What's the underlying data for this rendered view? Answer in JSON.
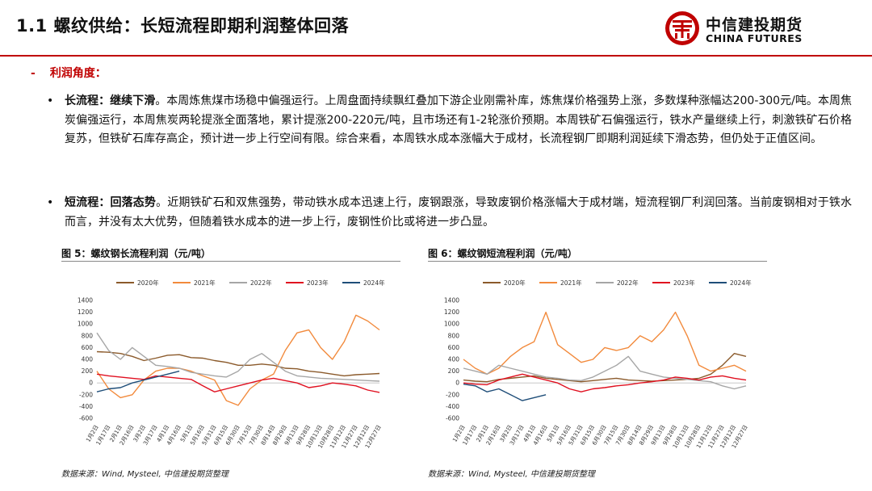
{
  "header": {
    "title": "1.1 螺纹供给：长短流程即期利润整体回落",
    "logo_cn": "中信建投期货",
    "logo_en": "CHINA FUTURES"
  },
  "section": {
    "dash": "-",
    "label": "利润角度："
  },
  "paragraphs": [
    {
      "lead": "长流程：继续下滑",
      "text": "。本周炼焦煤市场稳中偏强运行。上周盘面持续飘红叠加下游企业刚需补库，炼焦煤价格强势上涨，多数煤种涨幅达200-300元/吨。本周焦炭偏强运行，本周焦炭两轮提涨全面落地，累计提涨200-220元/吨，且市场还有1-2轮涨价预期。本周铁矿石偏强运行，铁水产量继续上行，刺激铁矿石价格复苏，但铁矿石库存高企，预计进一步上行空间有限。综合来看，本周铁水成本涨幅大于成材，长流程钢厂即期利润延续下滑态势，但仍处于正值区间。"
    },
    {
      "lead": "短流程：回落态势",
      "text": "。近期铁矿石和双焦强势，带动铁水成本迅速上行，废钢跟涨，导致废钢价格涨幅大于成材端，短流程钢厂利润回落。当前废钢相对于铁水而言，并没有太大优势，但随着铁水成本的进一步上行，废钢性价比或将进一步凸显。"
    }
  ],
  "bullet": "•",
  "figures": [
    {
      "title": "图 5：螺纹钢长流程利润（元/吨）",
      "source": "数据来源：Wind, Mysteel, 中信建投期货整理"
    },
    {
      "title": "图 6：螺纹钢短流程利润（元/吨）",
      "source": "数据来源：Wind, Mysteel, 中信建投期货整理"
    }
  ],
  "colors": {
    "brand_red": "#c00000",
    "s2020": "#8b5a2b",
    "s2021": "#f28a3c",
    "s2022": "#a6a6a6",
    "s2023": "#e01020",
    "s2024": "#1f4e79"
  },
  "chart_data": [
    {
      "type": "line",
      "title": "图 5：螺纹钢长流程利润（元/吨）",
      "xlabel": "",
      "ylabel": "",
      "ylim": [
        -600,
        1400
      ],
      "yticks": [
        -600,
        -400,
        -200,
        0,
        200,
        400,
        600,
        800,
        1000,
        1200,
        1400
      ],
      "xticks": [
        "1月2日",
        "1月17日",
        "2月1日",
        "2月16日",
        "3月2日",
        "3月17日",
        "4月1日",
        "4月16日",
        "5月1日",
        "5月16日",
        "5月31日",
        "6月15日",
        "6月30日",
        "7月15日",
        "7月30日",
        "8月14日",
        "8月29日",
        "9月13日",
        "9月28日",
        "10月13日",
        "10月28日",
        "11月12日",
        "11月27日",
        "12月12日",
        "12月27日"
      ],
      "legend": [
        "2020年",
        "2021年",
        "2022年",
        "2023年",
        "2024年"
      ],
      "series": [
        {
          "name": "2020年",
          "x": [
            0,
            1,
            2,
            3,
            4,
            5,
            6,
            7,
            8,
            9,
            10,
            11,
            12,
            13,
            14,
            15,
            16,
            17,
            18,
            19,
            20,
            21,
            22,
            23,
            24
          ],
          "values": [
            530,
            520,
            500,
            450,
            380,
            420,
            470,
            480,
            430,
            420,
            380,
            350,
            300,
            300,
            320,
            300,
            250,
            240,
            200,
            180,
            150,
            120,
            140,
            150,
            160
          ]
        },
        {
          "name": "2021年",
          "x": [
            0,
            1,
            2,
            3,
            4,
            5,
            6,
            7,
            8,
            9,
            10,
            11,
            12,
            13,
            14,
            15,
            16,
            17,
            18,
            19,
            20,
            21,
            22,
            23,
            24
          ],
          "values": [
            200,
            -100,
            -250,
            -200,
            50,
            200,
            250,
            250,
            200,
            120,
            50,
            -300,
            -380,
            -100,
            50,
            150,
            550,
            850,
            900,
            600,
            400,
            700,
            1150,
            1050,
            900
          ]
        },
        {
          "name": "2022年",
          "x": [
            0,
            1,
            2,
            3,
            4,
            5,
            6,
            7,
            8,
            9,
            10,
            11,
            12,
            13,
            14,
            15,
            16,
            17,
            18,
            19,
            20,
            21,
            22,
            23,
            24
          ],
          "values": [
            850,
            550,
            400,
            600,
            450,
            300,
            280,
            250,
            180,
            150,
            120,
            100,
            200,
            400,
            500,
            350,
            200,
            120,
            100,
            80,
            70,
            60,
            50,
            40,
            30
          ]
        },
        {
          "name": "2023年",
          "x": [
            0,
            1,
            2,
            3,
            4,
            5,
            6,
            7,
            8,
            9,
            10,
            11,
            12,
            13,
            14,
            15,
            16,
            17,
            18,
            19,
            20,
            21,
            22,
            23,
            24
          ],
          "values": [
            150,
            120,
            100,
            80,
            60,
            120,
            100,
            80,
            60,
            -50,
            -150,
            -100,
            -50,
            0,
            50,
            80,
            40,
            0,
            -80,
            -50,
            0,
            -20,
            -50,
            -120,
            -160
          ]
        },
        {
          "name": "2024年",
          "x": [
            0,
            1,
            2,
            3,
            4,
            5,
            6,
            7
          ],
          "values": [
            -150,
            -100,
            -80,
            0,
            50,
            100,
            150,
            200
          ]
        }
      ]
    },
    {
      "type": "line",
      "title": "图 6：螺纹钢短流程利润（元/吨）",
      "xlabel": "",
      "ylabel": "",
      "ylim": [
        -600,
        1400
      ],
      "yticks": [
        -600,
        -400,
        -200,
        0,
        200,
        400,
        600,
        800,
        1000,
        1200,
        1400
      ],
      "xticks": [
        "1月2日",
        "1月17日",
        "2月1日",
        "2月16日",
        "3月2日",
        "3月17日",
        "4月1日",
        "4月16日",
        "5月1日",
        "5月16日",
        "5月31日",
        "6月15日",
        "6月30日",
        "7月15日",
        "7月30日",
        "8月14日",
        "8月29日",
        "9月13日",
        "9月28日",
        "10月13日",
        "10月28日",
        "11月12日",
        "11月27日",
        "12月12日",
        "12月27日"
      ],
      "legend": [
        "2020年",
        "2021年",
        "2022年",
        "2023年",
        "2024年"
      ],
      "series": [
        {
          "name": "2020年",
          "x": [
            0,
            1,
            2,
            3,
            4,
            5,
            6,
            7,
            8,
            9,
            10,
            11,
            12,
            13,
            14,
            15,
            16,
            17,
            18,
            19,
            20,
            21,
            22,
            23,
            24
          ],
          "values": [
            50,
            30,
            20,
            60,
            80,
            100,
            120,
            80,
            60,
            40,
            20,
            40,
            60,
            80,
            50,
            40,
            30,
            40,
            50,
            60,
            80,
            150,
            300,
            500,
            450
          ]
        },
        {
          "name": "2021年",
          "x": [
            0,
            1,
            2,
            3,
            4,
            5,
            6,
            7,
            8,
            9,
            10,
            11,
            12,
            13,
            14,
            15,
            16,
            17,
            18,
            19,
            20,
            21,
            22,
            23,
            24
          ],
          "values": [
            400,
            250,
            150,
            250,
            450,
            600,
            700,
            1200,
            650,
            500,
            350,
            400,
            600,
            550,
            600,
            800,
            700,
            900,
            1200,
            800,
            300,
            200,
            250,
            300,
            200
          ]
        },
        {
          "name": "2022年",
          "x": [
            0,
            1,
            2,
            3,
            4,
            5,
            6,
            7,
            8,
            9,
            10,
            11,
            12,
            13,
            14,
            15,
            16,
            17,
            18,
            19,
            20,
            21,
            22,
            23,
            24
          ],
          "values": [
            250,
            200,
            150,
            300,
            250,
            200,
            150,
            100,
            80,
            50,
            40,
            100,
            200,
            300,
            450,
            200,
            150,
            100,
            80,
            60,
            40,
            20,
            -50,
            -100,
            -50
          ]
        },
        {
          "name": "2023年",
          "x": [
            0,
            1,
            2,
            3,
            4,
            5,
            6,
            7,
            8,
            9,
            10,
            11,
            12,
            13,
            14,
            15,
            16,
            17,
            18,
            19,
            20,
            21,
            22,
            23,
            24
          ],
          "values": [
            0,
            -20,
            -30,
            50,
            100,
            150,
            100,
            50,
            0,
            -100,
            -150,
            -100,
            -80,
            -50,
            -30,
            0,
            20,
            50,
            100,
            80,
            50,
            100,
            120,
            80,
            50
          ]
        },
        {
          "name": "2024年",
          "x": [
            0,
            1,
            2,
            3,
            4,
            5,
            6,
            7
          ],
          "values": [
            -20,
            -50,
            -150,
            -100,
            -200,
            -300,
            -250,
            -200
          ]
        }
      ]
    }
  ]
}
